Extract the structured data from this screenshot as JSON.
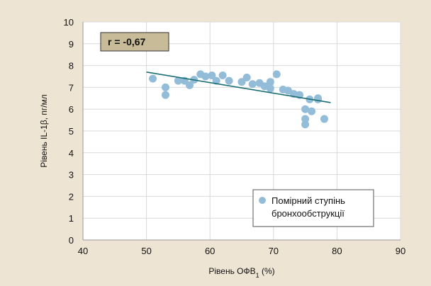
{
  "chart_data": {
    "type": "scatter",
    "xlabel": "Рівень ОФВ",
    "xlabel_sub": "1",
    "xlabel_suffix": " (%)",
    "ylabel": "Рівень IL-1β, пг/мл",
    "xlim": [
      40,
      90
    ],
    "ylim": [
      0,
      10
    ],
    "xticks": [
      40,
      50,
      60,
      70,
      80,
      90
    ],
    "yticks": [
      0,
      1,
      2,
      3,
      4,
      5,
      6,
      7,
      8,
      9,
      10
    ],
    "grid": true,
    "annotation": "r = -0,67",
    "legend_position": "bottom-right",
    "colors": {
      "points": "#93bcd9",
      "trendline": "#1b6f73",
      "background": "#eee4d3",
      "plot_area": "#ffffff",
      "grid": "#d9d9d9",
      "annotation_bg": "#c7bb98",
      "annotation_border": "#333333"
    },
    "series": [
      {
        "name": "Помірний ступінь бронхообструкції",
        "legend_lines": [
          "Помірний ступінь",
          "бронхообструкції"
        ],
        "points": [
          [
            51,
            7.4
          ],
          [
            53,
            7.0
          ],
          [
            53,
            6.65
          ],
          [
            55,
            7.3
          ],
          [
            56,
            7.3
          ],
          [
            56.8,
            7.1
          ],
          [
            57.5,
            7.35
          ],
          [
            58.5,
            7.6
          ],
          [
            59.3,
            7.5
          ],
          [
            60.3,
            7.55
          ],
          [
            61,
            7.3
          ],
          [
            62,
            7.55
          ],
          [
            63,
            7.3
          ],
          [
            65,
            7.25
          ],
          [
            65.8,
            7.45
          ],
          [
            66.7,
            7.15
          ],
          [
            67.8,
            7.2
          ],
          [
            68.6,
            7.05
          ],
          [
            69.5,
            7.25
          ],
          [
            69.5,
            6.95
          ],
          [
            70.5,
            7.6
          ],
          [
            71.5,
            6.9
          ],
          [
            72.3,
            6.85
          ],
          [
            73.2,
            6.7
          ],
          [
            74.1,
            6.65
          ],
          [
            75,
            6.0
          ],
          [
            75,
            5.55
          ],
          [
            75,
            5.3
          ],
          [
            75.7,
            6.45
          ],
          [
            76,
            5.9
          ],
          [
            77,
            6.5
          ],
          [
            77,
            6.45
          ],
          [
            78,
            5.55
          ]
        ]
      }
    ],
    "trendline": {
      "x": [
        50,
        79
      ],
      "y": [
        7.7,
        6.3
      ]
    }
  }
}
